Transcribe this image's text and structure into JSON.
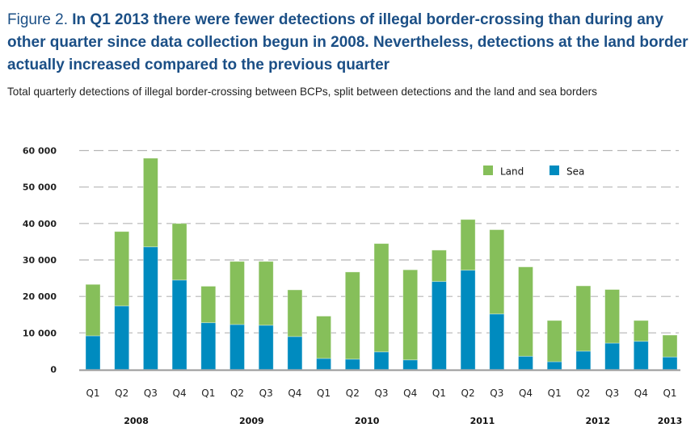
{
  "figure": {
    "label": "Figure 2.",
    "title": "In Q1 2013 there were fewer detections of illegal border-crossing than during any other quarter since data collection begun in 2008. Nevertheless, detections at the land border actually increased compared to the previous quarter",
    "subtitle": "Total quarterly detections of illegal border-crossing between BCPs, split between detections and the land and sea borders"
  },
  "chart_data": {
    "type": "bar",
    "stacked": true,
    "title": "Total quarterly detections of illegal border-crossing between BCPs, split between detections and the land and sea borders",
    "xlabel": "",
    "ylabel": "",
    "ylim": [
      0,
      60000
    ],
    "yticks": [
      0,
      10000,
      20000,
      30000,
      40000,
      50000,
      60000
    ],
    "ytick_labels": [
      "0",
      "10 000",
      "20 000",
      "30 000",
      "40 000",
      "50 000",
      "60 000"
    ],
    "grid": true,
    "legend_position": "top-right",
    "categories": [
      "Q1",
      "Q2",
      "Q3",
      "Q4",
      "Q1",
      "Q2",
      "Q3",
      "Q4",
      "Q1",
      "Q2",
      "Q3",
      "Q4",
      "Q1",
      "Q2",
      "Q3",
      "Q4",
      "Q1",
      "Q2",
      "Q3",
      "Q4",
      "Q1"
    ],
    "year_groups": [
      {
        "label": "2008",
        "start": 0,
        "end": 3
      },
      {
        "label": "2009",
        "start": 4,
        "end": 7
      },
      {
        "label": "2010",
        "start": 8,
        "end": 11
      },
      {
        "label": "2011",
        "start": 12,
        "end": 15
      },
      {
        "label": "2012",
        "start": 16,
        "end": 19
      },
      {
        "label": "2013",
        "start": 20,
        "end": 20
      }
    ],
    "series": [
      {
        "name": "Sea",
        "color": "#008bbf",
        "values": [
          9200,
          17400,
          33600,
          24500,
          12800,
          12300,
          12100,
          9000,
          3000,
          2800,
          4800,
          2600,
          24100,
          27200,
          15200,
          3600,
          2100,
          5000,
          7200,
          7700,
          3400
        ]
      },
      {
        "name": "Land",
        "color": "#86bf5a",
        "values": [
          14100,
          20400,
          24300,
          15500,
          10000,
          17300,
          17500,
          12800,
          11600,
          23900,
          29700,
          24700,
          8600,
          13900,
          23100,
          24500,
          11300,
          17900,
          14700,
          5700,
          6000
        ]
      }
    ]
  },
  "legend": [
    {
      "name": "Land",
      "color": "#86bf5a"
    },
    {
      "name": "Sea",
      "color": "#008bbf"
    }
  ]
}
